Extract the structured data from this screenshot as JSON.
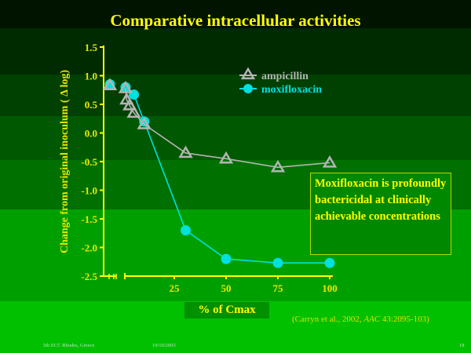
{
  "slide": {
    "title": "Comparative intracellular activities",
    "note_text": "Moxifloxacin is profoundly bactericidal at clinically achievable concentrations",
    "citation_prefix": "(Carryn et al., 2002, ",
    "citation_journal": "AAC",
    "citation_suffix": " 43:2095-103)",
    "footer_left": "5th ECC Rhodes, Greece",
    "footer_date": "19/10/2003",
    "page_number": "18",
    "background_bands": [
      "#001400",
      "#002a00",
      "#004000",
      "#005800",
      "#007000",
      "#009f00",
      "#00c000"
    ]
  },
  "chart_data": {
    "type": "line",
    "title": "Comparative intracellular activities",
    "xlabel": "% of Cmax",
    "ylabel": "Change from original inoculum ( Δ log)",
    "xlim": [
      0,
      100
    ],
    "ylim": [
      -2.5,
      1.5
    ],
    "x_axis_break": true,
    "x_ticks": [
      25,
      50,
      75,
      100
    ],
    "x_tick_labels": [
      "25",
      "50",
      "75",
      "100"
    ],
    "y_ticks": [
      1.5,
      1.0,
      0.5,
      0.0,
      -0.5,
      -1.0,
      -1.5,
      -2.0,
      -2.5
    ],
    "y_tick_labels": [
      "1.5",
      "1.0",
      "0.5",
      "0.0",
      "-0.5",
      "-1.0",
      "-1.5",
      "-2.0",
      "-2.5"
    ],
    "legend_position": "top-right",
    "grid": false,
    "control_point_note": "first point of each series plotted left of the axis break (control)",
    "series": [
      {
        "name": "ampicillin",
        "marker": "triangle",
        "color": "#b4b4b4",
        "control_y": 0.83,
        "x": [
          1.5,
          2,
          3.5,
          5.5,
          10.5,
          30.5,
          50,
          75,
          100
        ],
        "y": [
          0.78,
          0.58,
          0.48,
          0.35,
          0.15,
          -0.35,
          -0.45,
          -0.6,
          -0.52
        ]
      },
      {
        "name": "moxifloxacin",
        "marker": "circle",
        "color": "#00e0e0",
        "control_y": 0.85,
        "x": [
          1.5,
          5.5,
          10.5,
          30.5,
          50,
          75,
          100
        ],
        "y": [
          0.8,
          0.67,
          0.2,
          -1.7,
          -2.2,
          -2.27,
          -2.27
        ]
      }
    ]
  }
}
